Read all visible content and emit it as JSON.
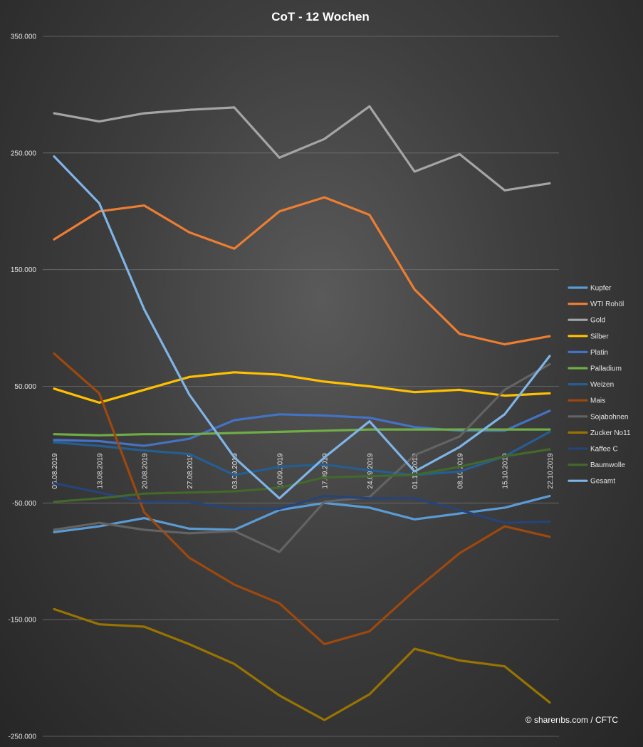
{
  "chart_data": {
    "type": "line",
    "title": "CoT  -  12 Wochen",
    "xlabel": "",
    "ylabel": "",
    "ylim": [
      -250000,
      350000
    ],
    "yticks": [
      350000,
      250000,
      150000,
      50000,
      -50000,
      -150000,
      -250000
    ],
    "ytick_labels": [
      "350.000",
      "250.000",
      "150.000",
      "50.000",
      "-50.000",
      "-150.000",
      "-250.000"
    ],
    "grid": true,
    "legend_position": "right",
    "categories": [
      "06.08.2019",
      "13.08.2019",
      "20.08.2019",
      "27.08.2019",
      "03.09.2019",
      "10.09.2019",
      "17.09.2019",
      "24.09.2019",
      "01.10.2019",
      "08.10.2019",
      "15.10.2019",
      "22.10.2019"
    ],
    "series": [
      {
        "name": "Kupfer",
        "color": "#5b9bd5",
        "values": [
          -75000,
          -70000,
          -63000,
          -72000,
          -73000,
          -56000,
          -50000,
          -54000,
          -64000,
          -59000,
          -54000,
          -44000
        ]
      },
      {
        "name": "WTI Rohöl",
        "color": "#ed7d31",
        "values": [
          176000,
          200000,
          205000,
          182000,
          168000,
          200000,
          212000,
          197000,
          133000,
          95000,
          86000,
          93000
        ]
      },
      {
        "name": "Gold",
        "color": "#a5a5a5",
        "values": [
          284000,
          277000,
          284000,
          287000,
          289000,
          246000,
          262000,
          290000,
          234000,
          249000,
          218000,
          224000
        ]
      },
      {
        "name": "Silber",
        "color": "#ffc000",
        "values": [
          48000,
          36000,
          47000,
          58000,
          62000,
          60000,
          54000,
          50000,
          45000,
          47000,
          42000,
          44000
        ]
      },
      {
        "name": "Platin",
        "color": "#4472c4",
        "values": [
          4000,
          3000,
          -1000,
          5000,
          21000,
          26000,
          25000,
          23000,
          15000,
          12000,
          12000,
          29000
        ]
      },
      {
        "name": "Palladium",
        "color": "#70ad47",
        "values": [
          9000,
          8000,
          9000,
          9000,
          10000,
          11000,
          12000,
          13000,
          13000,
          13000,
          13000,
          13000
        ]
      },
      {
        "name": "Weizen",
        "color": "#255e91",
        "values": [
          2000,
          -1000,
          -5000,
          -8000,
          -26000,
          -19000,
          -17000,
          -22000,
          -26000,
          -23000,
          -10000,
          11000
        ]
      },
      {
        "name": "Mais",
        "color": "#9e480e",
        "values": [
          78000,
          44000,
          -58000,
          -97000,
          -120000,
          -136000,
          -171000,
          -160000,
          -125000,
          -93000,
          -70000,
          -79000
        ]
      },
      {
        "name": "Sojabohnen",
        "color": "#636363",
        "values": [
          -73000,
          -67000,
          -73000,
          -76000,
          -74000,
          -92000,
          -49000,
          -45000,
          -9000,
          7000,
          47000,
          69000
        ]
      },
      {
        "name": "Zucker No11",
        "color": "#997300",
        "values": [
          -141000,
          -154000,
          -156000,
          -171000,
          -188000,
          -215000,
          -236000,
          -214000,
          -175000,
          -185000,
          -190000,
          -221000
        ]
      },
      {
        "name": "Kaffee C",
        "color": "#264478",
        "values": [
          -33000,
          -41000,
          -49000,
          -49000,
          -55000,
          -55000,
          -44000,
          -46000,
          -46000,
          -56000,
          -67000,
          -66000
        ]
      },
      {
        "name": "Baumwolle",
        "color": "#43682b",
        "values": [
          -49000,
          -46000,
          -42000,
          -41000,
          -40000,
          -37000,
          -28000,
          -27000,
          -26000,
          -19000,
          -10000,
          -4000
        ]
      },
      {
        "name": "Gesamt",
        "color": "#7fb4e6",
        "values": [
          247000,
          207000,
          116000,
          43000,
          -11000,
          -46000,
          -11000,
          20000,
          -23000,
          -2000,
          26000,
          76000
        ]
      }
    ]
  },
  "watermark": {
    "text": "© sharerıbs.com / CFTC"
  }
}
